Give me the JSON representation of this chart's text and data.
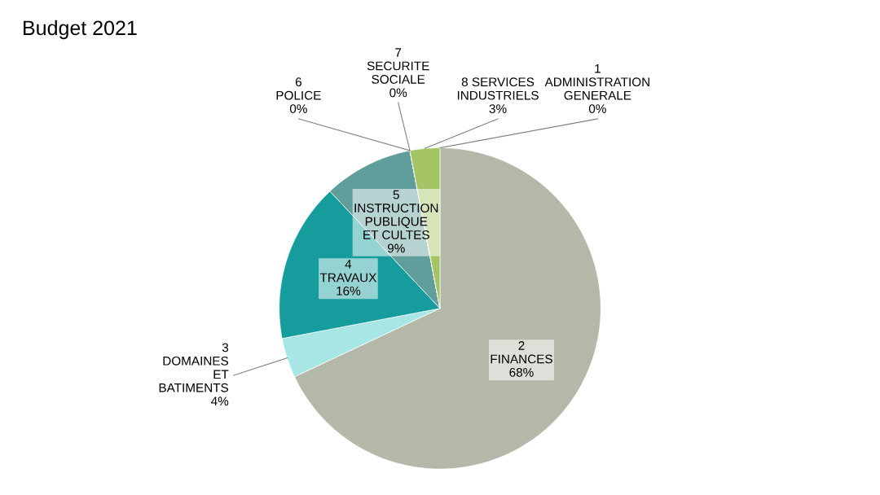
{
  "chart_data": {
    "type": "pie",
    "title": "Budget 2021",
    "categories": [
      "1\nADMINISTRATION\nGENERALE",
      "2\nFINANCES",
      "3\nDOMAINES\nET\nBATIMENTS",
      "4\nTRAVAUX",
      "5\nINSTRUCTION\nPUBLIQUE\nET CULTES",
      "6\nPOLICE",
      "7\nSECURITE\nSOCIALE",
      "8 SERVICES\nINDUSTRIELS"
    ],
    "values": [
      0,
      68,
      4,
      16,
      9,
      0,
      0,
      3
    ],
    "value_labels": [
      "0%",
      "68%",
      "4%",
      "16%",
      "9%",
      "0%",
      "0%",
      "3%"
    ],
    "colors": [
      "#556b2f",
      "#b4b8a8",
      "#a8e6e6",
      "#169c9c",
      "#5f9e9a",
      "#2e6b6b",
      "#2b5656",
      "#a4c466"
    ]
  }
}
